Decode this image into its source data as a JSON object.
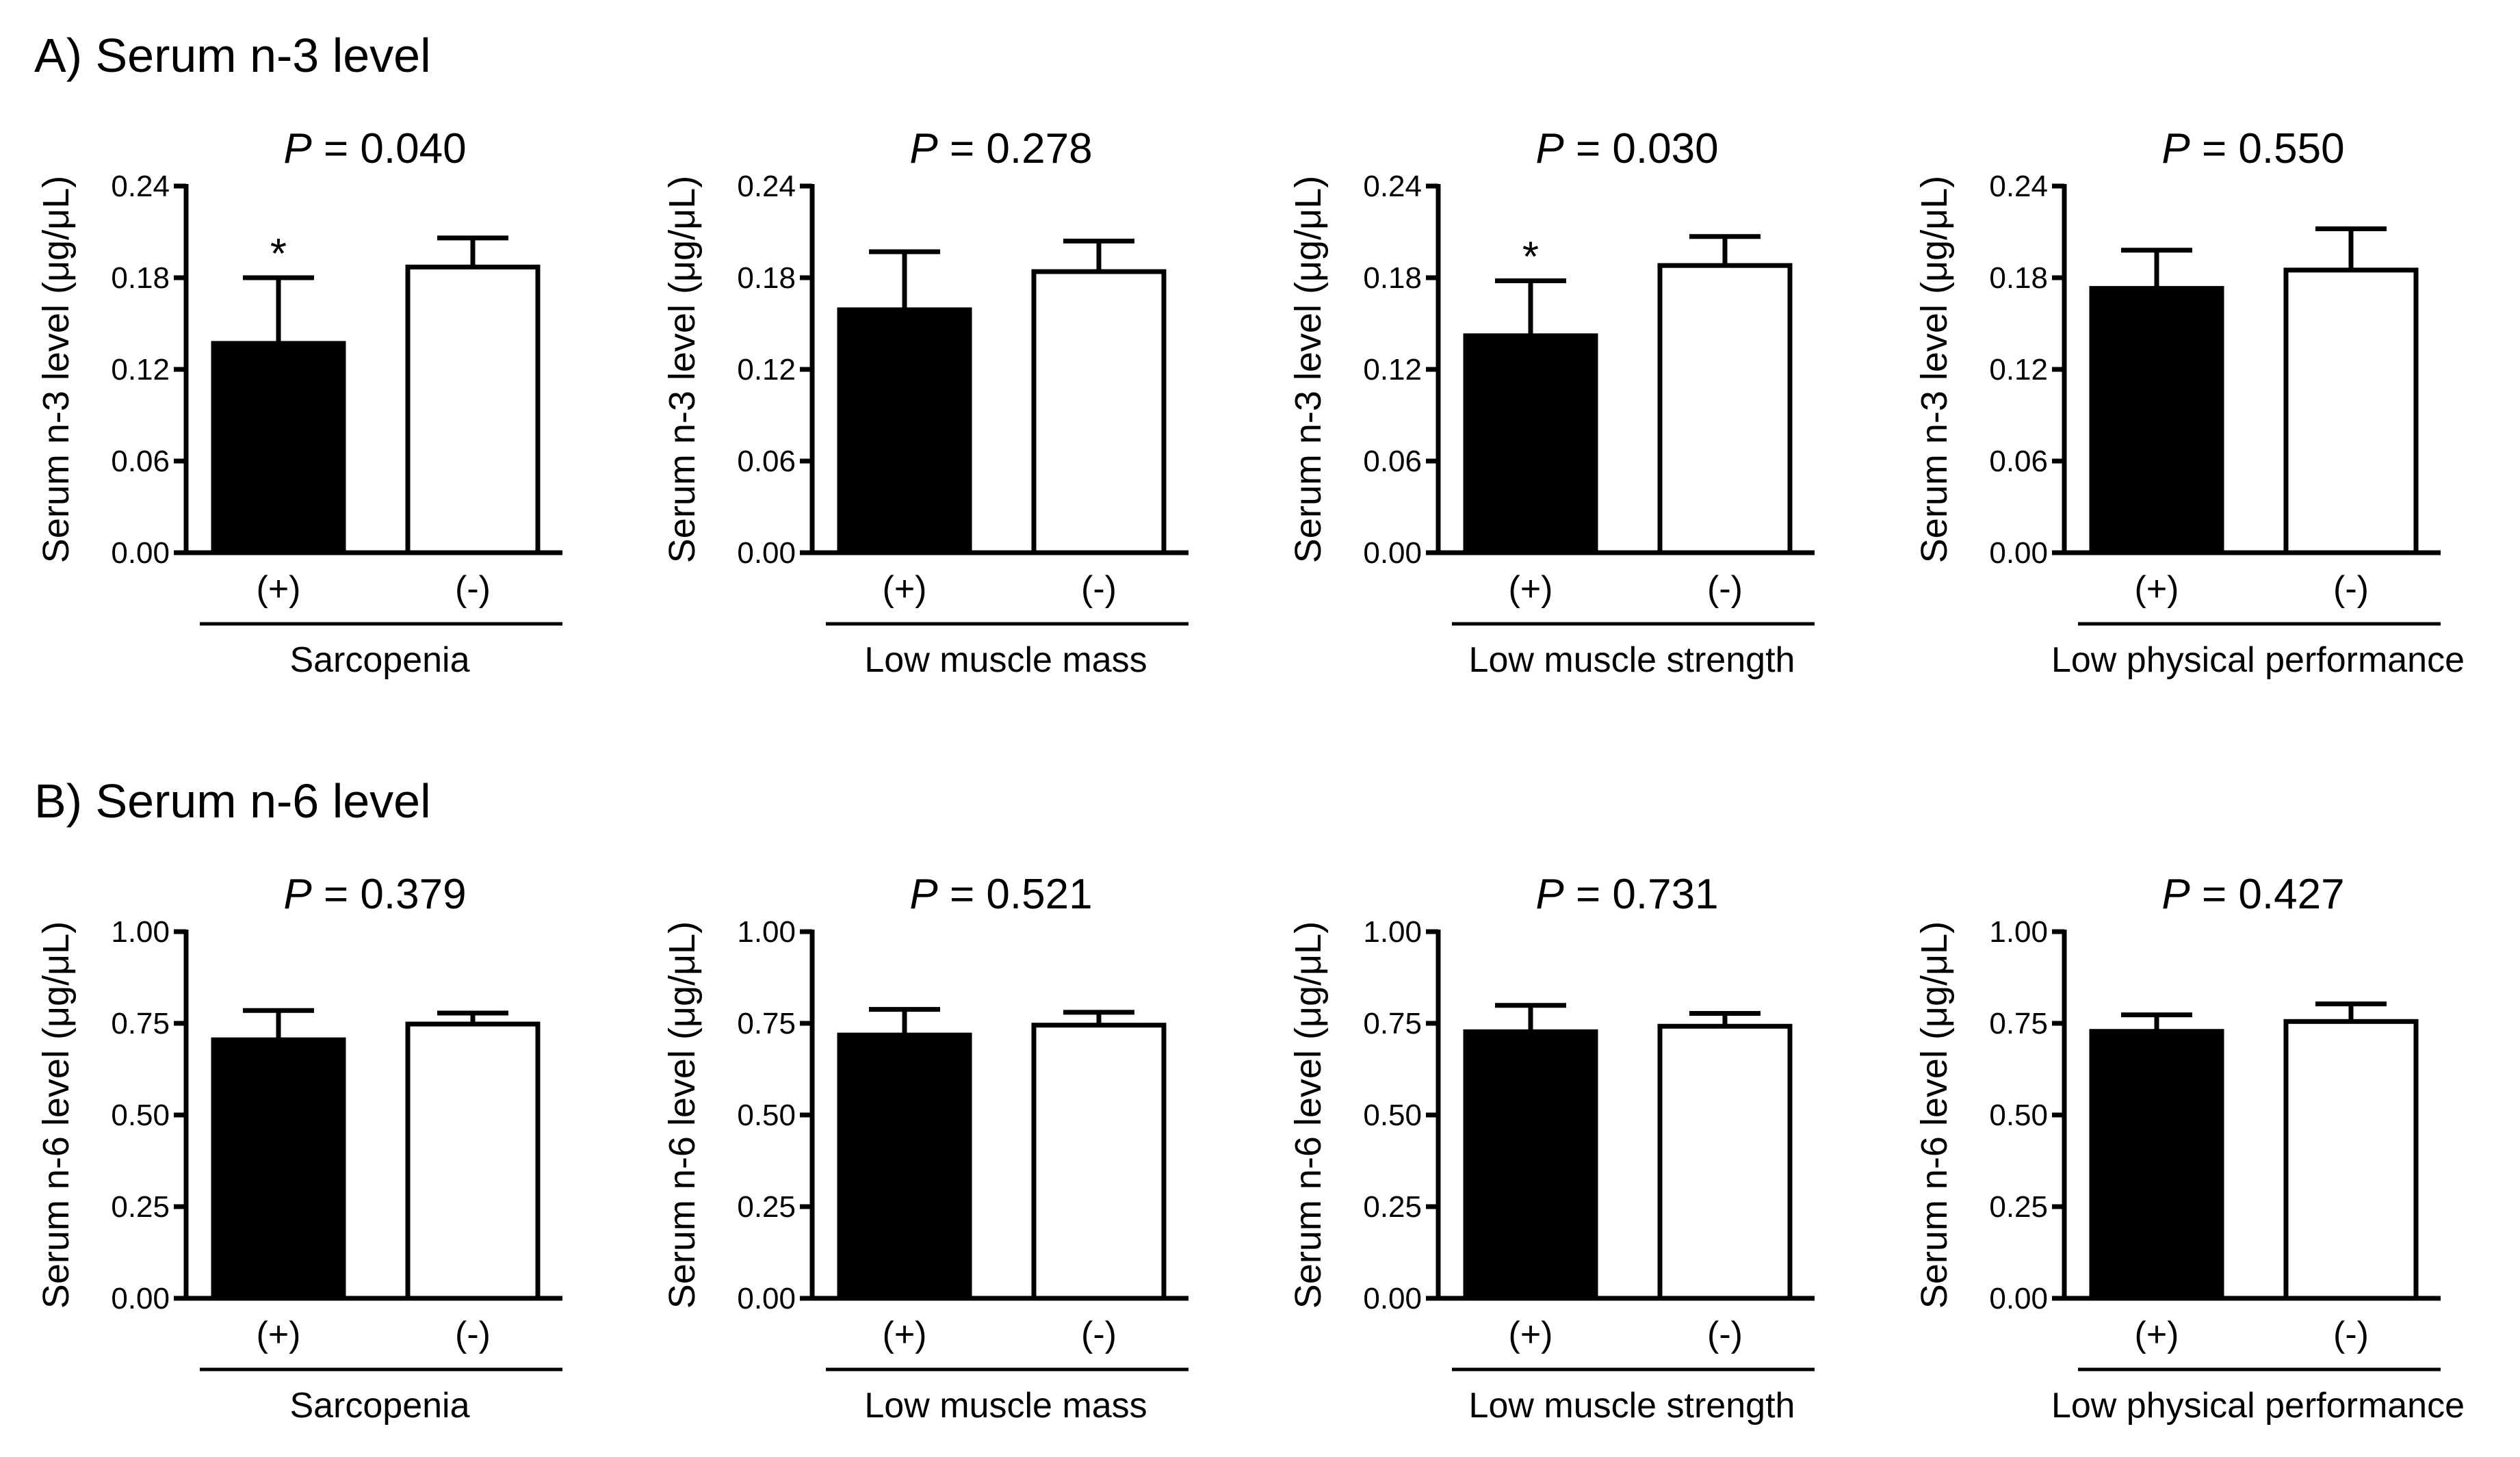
{
  "figure": {
    "sections": [
      {
        "title": "A) Serum n-3 level",
        "ylabel": "Serum n-3 level (μg/μL)",
        "yticks": [
          "0.00",
          "0.06",
          "0.12",
          "0.18",
          "0.24"
        ],
        "ylim": [
          0,
          0.24
        ],
        "panels": [
          {
            "p_prefix": "P",
            "p_value": " = 0.040",
            "category": "Sarcopenia"
          },
          {
            "p_prefix": "P",
            "p_value": " = 0.278",
            "category": "Low muscle mass"
          },
          {
            "p_prefix": "P",
            "p_value": " = 0.030",
            "category": "Low muscle strength"
          },
          {
            "p_prefix": "P",
            "p_value": " = 0.550",
            "category": "Low physical performance"
          }
        ]
      },
      {
        "title": "B) Serum n-6 level",
        "ylabel": "Serum n-6 level (μg/μL)",
        "yticks": [
          "0.00",
          "0.25",
          "0.50",
          "0.75",
          "1.00"
        ],
        "ylim": [
          0,
          1.0
        ],
        "panels": [
          {
            "p_prefix": "P",
            "p_value": " = 0.379",
            "category": "Sarcopenia"
          },
          {
            "p_prefix": "P",
            "p_value": " = 0.521",
            "category": "Low muscle mass"
          },
          {
            "p_prefix": "P",
            "p_value": " = 0.731",
            "category": "Low muscle strength"
          },
          {
            "p_prefix": "P",
            "p_value": " = 0.427",
            "category": "Low physical performance"
          }
        ]
      }
    ]
  },
  "colors": {
    "positive_bar": "#000000",
    "negative_bar": "#ffffff",
    "axis": "#000000"
  },
  "chart_data": [
    {
      "type": "bar",
      "title": "P = 0.040",
      "xlabel": "Sarcopenia",
      "ylabel": "Serum n-3 level (μg/μL)",
      "ylim": [
        0,
        0.24
      ],
      "categories": [
        "(+)",
        "(-)"
      ],
      "values": [
        0.137,
        0.187
      ],
      "errors": [
        0.043,
        0.019
      ],
      "annotations": [
        "*",
        ""
      ]
    },
    {
      "type": "bar",
      "title": "P = 0.278",
      "xlabel": "Low muscle mass",
      "ylabel": "Serum n-3 level (μg/μL)",
      "ylim": [
        0,
        0.24
      ],
      "categories": [
        "(+)",
        "(-)"
      ],
      "values": [
        0.159,
        0.184
      ],
      "errors": [
        0.038,
        0.02
      ],
      "annotations": [
        "",
        ""
      ]
    },
    {
      "type": "bar",
      "title": "P = 0.030",
      "xlabel": "Low muscle strength",
      "ylabel": "Serum n-3 level (μg/μL)",
      "ylim": [
        0,
        0.24
      ],
      "categories": [
        "(+)",
        "(-)"
      ],
      "values": [
        0.142,
        0.188
      ],
      "errors": [
        0.036,
        0.019
      ],
      "annotations": [
        "*",
        ""
      ]
    },
    {
      "type": "bar",
      "title": "P = 0.550",
      "xlabel": "Low physical performance",
      "ylabel": "Serum n-3 level (μg/μL)",
      "ylim": [
        0,
        0.24
      ],
      "categories": [
        "(+)",
        "(-)"
      ],
      "values": [
        0.173,
        0.185
      ],
      "errors": [
        0.025,
        0.027
      ],
      "annotations": [
        "",
        ""
      ]
    },
    {
      "type": "bar",
      "title": "P = 0.379",
      "xlabel": "Sarcopenia",
      "ylabel": "Serum n-6 level (μg/μL)",
      "ylim": [
        0,
        1.0
      ],
      "categories": [
        "(+)",
        "(-)"
      ],
      "values": [
        0.705,
        0.748
      ],
      "errors": [
        0.08,
        0.03
      ],
      "annotations": [
        "",
        ""
      ]
    },
    {
      "type": "bar",
      "title": "P = 0.521",
      "xlabel": "Low muscle mass",
      "ylabel": "Serum n-6 level (μg/μL)",
      "ylim": [
        0,
        1.0
      ],
      "categories": [
        "(+)",
        "(-)"
      ],
      "values": [
        0.718,
        0.745
      ],
      "errors": [
        0.07,
        0.035
      ],
      "annotations": [
        "",
        ""
      ]
    },
    {
      "type": "bar",
      "title": "P = 0.731",
      "xlabel": "Low muscle strength",
      "ylabel": "Serum n-6 level (μg/μL)",
      "ylim": [
        0,
        1.0
      ],
      "categories": [
        "(+)",
        "(-)"
      ],
      "values": [
        0.727,
        0.742
      ],
      "errors": [
        0.072,
        0.035
      ],
      "annotations": [
        "",
        ""
      ]
    },
    {
      "type": "bar",
      "title": "P = 0.427",
      "xlabel": "Low physical performance",
      "ylabel": "Serum n-6 level (μg/μL)",
      "ylim": [
        0,
        1.0
      ],
      "categories": [
        "(+)",
        "(-)"
      ],
      "values": [
        0.728,
        0.755
      ],
      "errors": [
        0.045,
        0.048
      ],
      "annotations": [
        "",
        ""
      ]
    }
  ]
}
